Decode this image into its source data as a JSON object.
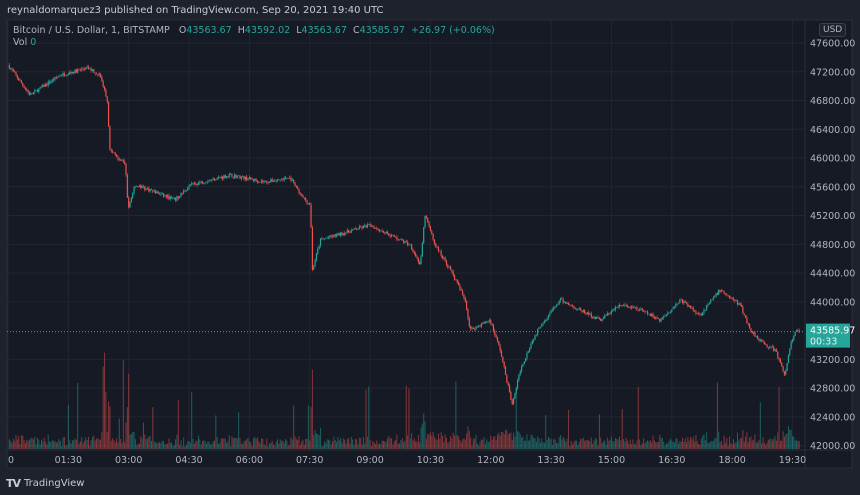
{
  "header": {
    "publisher": "reynaldomarquez3 published on TradingView.com, Sep 20, 2021 19:40 UTC"
  },
  "legend": {
    "symbol": "Bitcoin / U.S. Dollar, 1, BITSTAMP",
    "open_label": "O",
    "open": "43563.67",
    "high_label": "H",
    "high": "43592.02",
    "low_label": "L",
    "low": "43563.67",
    "close_label": "C",
    "close": "43585.97",
    "change": "+26.97 (+0.06%)",
    "vol_label": "Vol",
    "vol": "0"
  },
  "currency": "USD",
  "footer": {
    "logo_text": "TradingView",
    "logo_mark": "TV"
  },
  "colors": {
    "up": "#26a69a",
    "down": "#ef5350",
    "background": "#161a25",
    "frame": "#1e222d",
    "last_price_label": "#26a69a"
  },
  "chart_data": {
    "type": "candlestick",
    "interval": "1",
    "yticks": [
      "47600.00",
      "47200.00",
      "46800.00",
      "46400.00",
      "46000.00",
      "45600.00",
      "45200.00",
      "44800.00",
      "44400.00",
      "44000.00",
      "43200.00",
      "42800.00",
      "42400.00",
      "42000.00"
    ],
    "xticks": [
      "0",
      "01:30",
      "03:00",
      "04:30",
      "06:00",
      "07:30",
      "09:00",
      "10:30",
      "12:00",
      "13:30",
      "15:00",
      "16:30",
      "18:00",
      "19:30"
    ],
    "ylim": [
      42000,
      47600
    ],
    "xlim": [
      "00:00",
      "19:40"
    ],
    "last_price": {
      "value": "43585.97",
      "countdown": "00:33"
    },
    "grid": true,
    "price_path": [
      [
        "00:00",
        47294
      ],
      [
        "00:33",
        46877
      ],
      [
        "01:18",
        47155
      ],
      [
        "01:59",
        47252
      ],
      [
        "02:17",
        47155
      ],
      [
        "02:28",
        46807
      ],
      [
        "02:32",
        46112
      ],
      [
        "02:40",
        46042
      ],
      [
        "02:55",
        45903
      ],
      [
        "02:59",
        45277
      ],
      [
        "03:09",
        45625
      ],
      [
        "03:32",
        45555
      ],
      [
        "04:09",
        45416
      ],
      [
        "04:32",
        45625
      ],
      [
        "05:31",
        45764
      ],
      [
        "06:23",
        45667
      ],
      [
        "07:01",
        45722
      ],
      [
        "07:16",
        45486
      ],
      [
        "07:31",
        45347
      ],
      [
        "07:34",
        44443
      ],
      [
        "07:46",
        44860
      ],
      [
        "09:00",
        45069
      ],
      [
        "10:00",
        44790
      ],
      [
        "10:15",
        44512
      ],
      [
        "10:22",
        45208
      ],
      [
        "10:37",
        44790
      ],
      [
        "11:00",
        44443
      ],
      [
        "11:22",
        44026
      ],
      [
        "11:29",
        43609
      ],
      [
        "11:59",
        43747
      ],
      [
        "12:14",
        43330
      ],
      [
        "12:32",
        42565
      ],
      [
        "12:44",
        43052
      ],
      [
        "12:59",
        43400
      ],
      [
        "13:14",
        43678
      ],
      [
        "13:44",
        44026
      ],
      [
        "14:13",
        43886
      ],
      [
        "14:43",
        43747
      ],
      [
        "15:13",
        43956
      ],
      [
        "15:43",
        43886
      ],
      [
        "16:13",
        43747
      ],
      [
        "16:43",
        44026
      ],
      [
        "17:12",
        43817
      ],
      [
        "17:42",
        44165
      ],
      [
        "18:12",
        43956
      ],
      [
        "18:27",
        43609
      ],
      [
        "18:49",
        43400
      ],
      [
        "19:04",
        43330
      ],
      [
        "19:19",
        42982
      ],
      [
        "19:27",
        43400
      ],
      [
        "19:34",
        43586
      ],
      [
        "19:40",
        43586
      ]
    ]
  }
}
